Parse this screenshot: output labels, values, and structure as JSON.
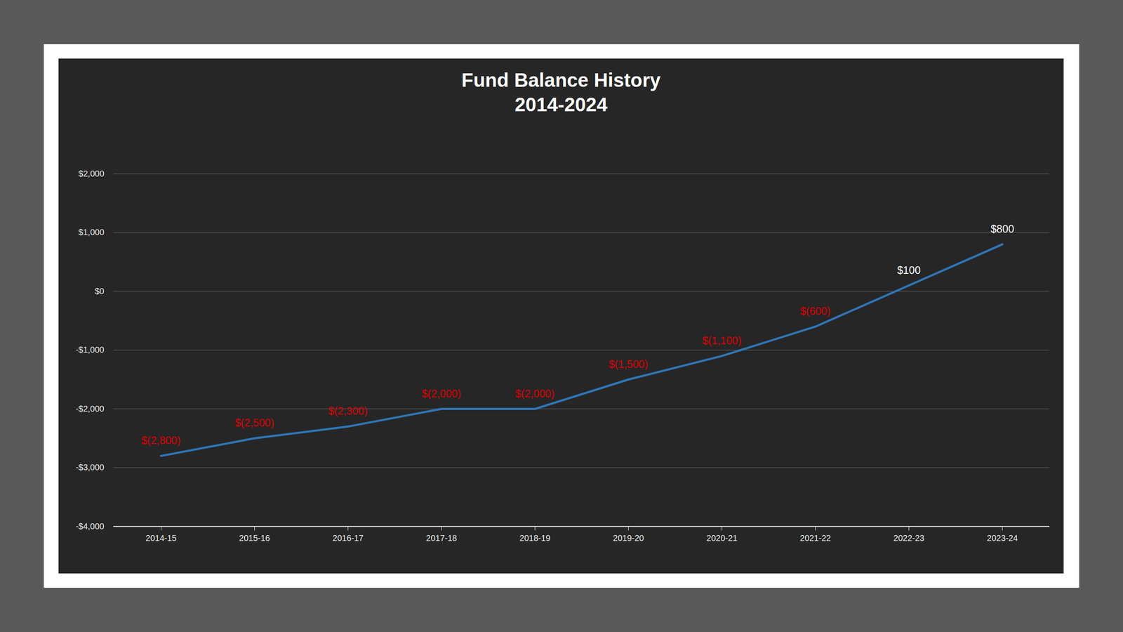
{
  "chart_data": {
    "type": "line",
    "title": "Fund Balance History",
    "subtitle": "2014-2024",
    "categories": [
      "2014-15",
      "2015-16",
      "2016-17",
      "2017-18",
      "2018-19",
      "2019-20",
      "2020-21",
      "2021-22",
      "2022-23",
      "2023-24"
    ],
    "values": [
      -2800,
      -2500,
      -2300,
      -2000,
      -2000,
      -1500,
      -1100,
      -600,
      100,
      800
    ],
    "value_labels": [
      "$(2,800)",
      "$(2,500)",
      "$(2,300)",
      "$(2,000)",
      "$(2,000)",
      "$(1,500)",
      "$(1,100)",
      "$(600)",
      "$100",
      "$800"
    ],
    "color": "#2e75b6",
    "ylim": [
      -4000,
      2000
    ],
    "yticks": [
      {
        "value": -4000,
        "label": "-$4,000"
      },
      {
        "value": -3000,
        "label": "-$3,000"
      },
      {
        "value": -2000,
        "label": "-$2,000"
      },
      {
        "value": -1000,
        "label": "-$1,000"
      },
      {
        "value": 0,
        "label": "$0"
      },
      {
        "value": 1000,
        "label": "$1,000"
      },
      {
        "value": 2000,
        "label": "$2,000"
      }
    ],
    "grid": true,
    "data_labels": true
  }
}
